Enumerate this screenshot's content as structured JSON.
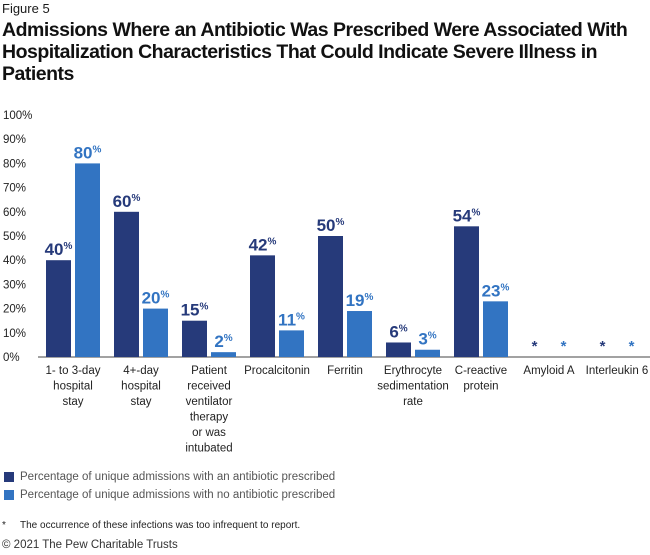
{
  "figure_label": "Figure 5",
  "chart_data": {
    "type": "bar",
    "title": "Admissions Where an Antibiotic Was Prescribed Were Associated With Hospitalization Characteristics That Could Indicate Severe Illness in Patients",
    "categories": [
      [
        "1- to 3-day",
        "hospital",
        "stay"
      ],
      [
        "4+-day",
        "hospital",
        "stay"
      ],
      [
        "Patient",
        "received",
        "ventilator",
        "therapy",
        "or was",
        "intubated"
      ],
      [
        "Procalcitonin"
      ],
      [
        "Ferritin"
      ],
      [
        "Erythrocyte",
        "sedimentation",
        "rate"
      ],
      [
        "C-reactive",
        "protein"
      ],
      [
        "Amyloid A"
      ],
      [
        "Interleukin 6"
      ]
    ],
    "series": [
      {
        "name": "Percentage of unique admissions with an antibiotic prescribed",
        "color": "#263a7a",
        "values": [
          40,
          60,
          15,
          42,
          50,
          6,
          54,
          null,
          null
        ]
      },
      {
        "name": "Percentage of unique admissions with no antibiotic prescribed",
        "color": "#3274c2",
        "values": [
          80,
          20,
          2,
          11,
          19,
          3,
          23,
          null,
          null
        ]
      }
    ],
    "value_suffix": "%",
    "suppressed_marker": "*",
    "ylim": [
      0,
      100
    ],
    "yticks": [
      "0%",
      "10%",
      "20%",
      "30%",
      "40%",
      "50%",
      "60%",
      "70%",
      "80%",
      "90%",
      "100%"
    ],
    "xlabel": "",
    "ylabel": "",
    "legend_position": "bottom-left",
    "grid": false
  },
  "footnote": {
    "marker": "*",
    "text": "The occurrence of these infections was too infrequent to report."
  },
  "copyright": "© 2021 The Pew Charitable Trusts"
}
